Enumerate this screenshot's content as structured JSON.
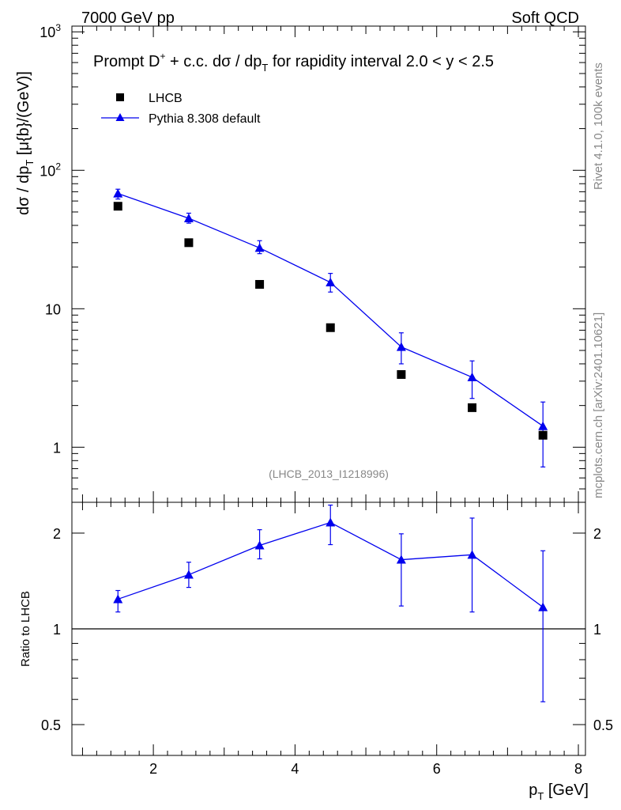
{
  "header": {
    "left": "7000 GeV pp",
    "right": "Soft QCD"
  },
  "side_labels": {
    "rivet": "Rivet 4.1.0,  100k events",
    "mcplots": "mcplots.cern.ch [arXiv:2401.10621]"
  },
  "colors": {
    "mc": "#0000ee",
    "data": "#000000",
    "watermark": "#888888"
  },
  "chart_data": [
    {
      "type": "scatter",
      "title": {
        "prefix": "Prompt D",
        "sup": "+",
        "middle": " + c.c.  dσ / dp",
        "sub": "T",
        "suffix": " for rapidity interval 2.0 < y < 2.5"
      },
      "ylabel": {
        "main": "dσ / dp",
        "sub": "T",
        "units": " [μ{b}/(GeV)]"
      },
      "yscale": "log",
      "ylim": [
        0.4,
        1100
      ],
      "xlim": [
        0.85,
        8.1
      ],
      "y_ticks": [
        {
          "value": 1,
          "label": "1"
        },
        {
          "value": 10,
          "label": "10"
        },
        {
          "value": 100,
          "label": "10",
          "sup": "2"
        },
        {
          "value": 1000,
          "label": "10",
          "sup": "3"
        }
      ],
      "watermark": "(LHCB_2013_I1218996)",
      "legend_position": "top-left",
      "x": [
        1.5,
        2.5,
        3.5,
        4.5,
        5.5,
        6.5,
        7.5
      ],
      "series": [
        {
          "name": "LHCB",
          "marker": "square",
          "values": [
            55,
            30,
            15,
            7.3,
            3.35,
            1.93,
            1.22
          ]
        },
        {
          "name": "Pythia 8.308 default",
          "marker": "triangle",
          "line": true,
          "values": [
            68,
            45,
            27.5,
            15.5,
            5.3,
            3.2,
            1.42
          ],
          "err_low": [
            62,
            41.5,
            25,
            13.2,
            4.0,
            2.25,
            0.72
          ],
          "err_high": [
            73,
            49,
            31,
            18,
            6.7,
            4.2,
            2.12
          ]
        }
      ]
    },
    {
      "type": "line",
      "ylabel": "Ratio to LHCB",
      "xlabel": {
        "main": "p",
        "sub": "T",
        "units": " [GeV]"
      },
      "yscale": "log",
      "ylim": [
        0.4,
        2.5
      ],
      "xlim": [
        0.85,
        8.1
      ],
      "x_ticks": [
        2,
        4,
        6,
        8
      ],
      "y_ticks": [
        {
          "value": 0.5,
          "label": "0.5"
        },
        {
          "value": 1,
          "label": "1"
        },
        {
          "value": 2,
          "label": "2"
        }
      ],
      "reference": 1,
      "x": [
        1.5,
        2.5,
        3.5,
        4.5,
        5.5,
        6.5,
        7.5
      ],
      "series": [
        {
          "name": "Pythia 8.308 default",
          "marker": "triangle",
          "values": [
            1.24,
            1.48,
            1.83,
            2.16,
            1.65,
            1.71,
            1.17
          ],
          "err_low": [
            1.13,
            1.35,
            1.66,
            1.84,
            1.18,
            1.13,
            0.59
          ],
          "err_high": [
            1.32,
            1.62,
            2.05,
            2.45,
            1.99,
            2.23,
            1.76
          ]
        }
      ]
    }
  ]
}
